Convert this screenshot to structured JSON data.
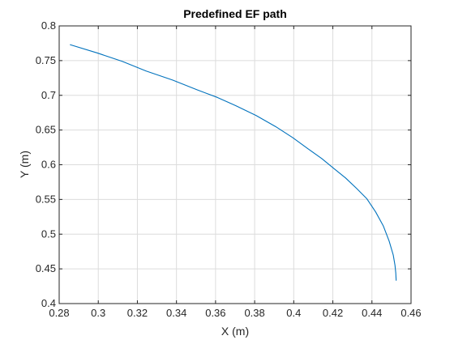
{
  "chart_data": {
    "type": "line",
    "title": "Predefined EF path",
    "xlabel": "X (m)",
    "ylabel": "Y (m)",
    "xlim": [
      0.28,
      0.46
    ],
    "ylim": [
      0.4,
      0.8
    ],
    "xticks": [
      0.28,
      0.3,
      0.32,
      0.34,
      0.36,
      0.38,
      0.4,
      0.42,
      0.44,
      0.46
    ],
    "xtick_labels": [
      "0.28",
      "0.3",
      "0.32",
      "0.34",
      "0.36",
      "0.38",
      "0.4",
      "0.42",
      "0.44",
      "0.46"
    ],
    "yticks": [
      0.4,
      0.45,
      0.5,
      0.55,
      0.6,
      0.65,
      0.7,
      0.75,
      0.8
    ],
    "ytick_labels": [
      "0.4",
      "0.45",
      "0.5",
      "0.55",
      "0.6",
      "0.65",
      "0.7",
      "0.75",
      "0.8"
    ],
    "grid": true,
    "series": [
      {
        "name": "EF path",
        "color": "#0072BD",
        "x": [
          0.2855,
          0.2995,
          0.3122,
          0.3245,
          0.338,
          0.3505,
          0.3609,
          0.3704,
          0.3807,
          0.3907,
          0.3995,
          0.4073,
          0.4143,
          0.4208,
          0.4265,
          0.4321,
          0.4374,
          0.4419,
          0.4458,
          0.4488,
          0.4509,
          0.4518,
          0.4522,
          0.4524
        ],
        "y": [
          0.773,
          0.761,
          0.749,
          0.735,
          0.722,
          0.708,
          0.697,
          0.685,
          0.671,
          0.655,
          0.639,
          0.623,
          0.609,
          0.594,
          0.581,
          0.566,
          0.551,
          0.532,
          0.512,
          0.49,
          0.47,
          0.455,
          0.444,
          0.433
        ]
      }
    ]
  }
}
